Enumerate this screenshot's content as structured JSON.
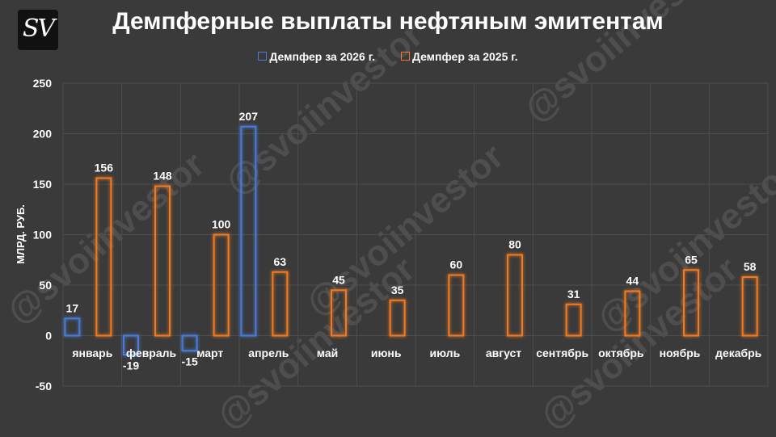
{
  "header": {
    "logo_text": "SV",
    "title": "Демпферные выплаты нефтяным эмитентам"
  },
  "watermark": "@svoiinvestor",
  "colors": {
    "series_2026": "#4a7cd8",
    "series_2025": "#f07a24",
    "background": "#3a3a3a",
    "grid": "#4e4e4e"
  },
  "chart_data": {
    "type": "bar",
    "title": "Демпферные выплаты нефтяным эмитентам",
    "ylabel": "МЛРД. РУБ.",
    "xlabel": "",
    "ylim": [
      -50,
      250
    ],
    "yticks": [
      -50,
      0,
      50,
      100,
      150,
      200,
      250
    ],
    "grid": true,
    "legend_position": "top",
    "categories": [
      "январь",
      "февраль",
      "март",
      "апрель",
      "май",
      "июнь",
      "июль",
      "август",
      "сентябрь",
      "октябрь",
      "ноябрь",
      "декабрь"
    ],
    "series": [
      {
        "name": "Демпфер за 2026 г.",
        "values": [
          17,
          -19,
          -15,
          207,
          null,
          null,
          null,
          null,
          null,
          null,
          null,
          null
        ]
      },
      {
        "name": "Демпфер за 2025 г.",
        "values": [
          156,
          148,
          100,
          63,
          45,
          35,
          60,
          80,
          31,
          44,
          65,
          58
        ]
      }
    ]
  }
}
